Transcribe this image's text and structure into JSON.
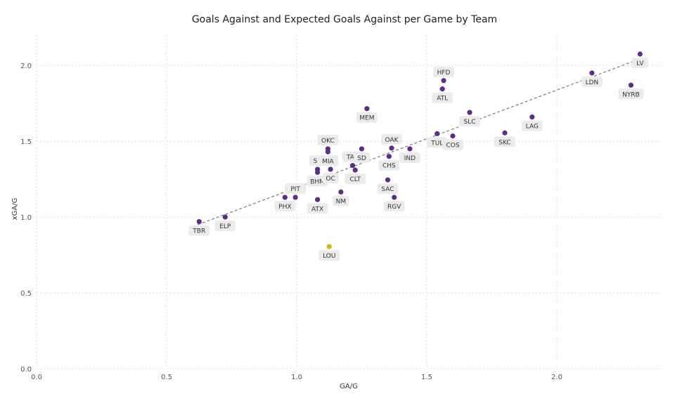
{
  "chart_data": {
    "type": "scatter",
    "title": "Goals Against and Expected Goals Against per Game by Team",
    "xlabel": "GA/G",
    "ylabel": "xGA/G",
    "xlim": [
      0.0,
      2.4
    ],
    "ylim": [
      0.0,
      2.2
    ],
    "xticks": [
      "0.0",
      "0.5",
      "1.0",
      "1.5",
      "2.0"
    ],
    "yticks": [
      "0.0",
      "0.5",
      "1.0",
      "1.5",
      "2.0"
    ],
    "grid": true,
    "trendline": {
      "style": "dashed",
      "x1": 0.62,
      "y1": 0.95,
      "x2": 2.33,
      "y2": 2.05
    },
    "colors": {
      "point": "#5b2d86",
      "highlight": "#d4b516",
      "trend": "#7a7a7a",
      "grid": "#dddddd",
      "label_bg": "#ebebeb"
    },
    "points": [
      {
        "label": "TBR",
        "x": 0.625,
        "y": 0.97,
        "pos": "below"
      },
      {
        "label": "ELP",
        "x": 0.725,
        "y": 1.0,
        "pos": "below"
      },
      {
        "label": "PHX",
        "x": 0.955,
        "y": 1.13,
        "pos": "below"
      },
      {
        "label": "PIT",
        "x": 0.995,
        "y": 1.13,
        "pos": "above"
      },
      {
        "label": "ATX",
        "x": 1.08,
        "y": 1.115,
        "pos": "below"
      },
      {
        "label": "SA",
        "x": 1.08,
        "y": 1.315,
        "pos": "above"
      },
      {
        "label": "BHM",
        "x": 1.08,
        "y": 1.295,
        "pos": "below"
      },
      {
        "label": "OKC",
        "x": 1.12,
        "y": 1.45,
        "pos": "above"
      },
      {
        "label": "MIA",
        "x": 1.12,
        "y": 1.43,
        "pos": "below"
      },
      {
        "label": "OC",
        "x": 1.13,
        "y": 1.315,
        "pos": "below"
      },
      {
        "label": "NM",
        "x": 1.17,
        "y": 1.165,
        "pos": "below"
      },
      {
        "label": "TAC",
        "x": 1.215,
        "y": 1.34,
        "pos": "above"
      },
      {
        "label": "CLT",
        "x": 1.225,
        "y": 1.31,
        "pos": "below"
      },
      {
        "label": "SD",
        "x": 1.25,
        "y": 1.45,
        "pos": "below"
      },
      {
        "label": "MEM",
        "x": 1.27,
        "y": 1.715,
        "pos": "below"
      },
      {
        "label": "SAC",
        "x": 1.35,
        "y": 1.245,
        "pos": "below"
      },
      {
        "label": "RGV",
        "x": 1.375,
        "y": 1.13,
        "pos": "below"
      },
      {
        "label": "OAK",
        "x": 1.365,
        "y": 1.455,
        "pos": "above"
      },
      {
        "label": "CHS",
        "x": 1.355,
        "y": 1.4,
        "pos": "below"
      },
      {
        "label": "IND",
        "x": 1.435,
        "y": 1.45,
        "pos": "below"
      },
      {
        "label": "TUL",
        "x": 1.54,
        "y": 1.55,
        "pos": "below"
      },
      {
        "label": "HFD",
        "x": 1.565,
        "y": 1.9,
        "pos": "above"
      },
      {
        "label": "ATL",
        "x": 1.56,
        "y": 1.845,
        "pos": "below"
      },
      {
        "label": "COS",
        "x": 1.6,
        "y": 1.535,
        "pos": "below"
      },
      {
        "label": "SLC",
        "x": 1.665,
        "y": 1.69,
        "pos": "below"
      },
      {
        "label": "SKC",
        "x": 1.8,
        "y": 1.555,
        "pos": "below"
      },
      {
        "label": "LAG",
        "x": 1.905,
        "y": 1.66,
        "pos": "below"
      },
      {
        "label": "LDN",
        "x": 2.135,
        "y": 1.95,
        "pos": "below"
      },
      {
        "label": "NYRB",
        "x": 2.285,
        "y": 1.87,
        "pos": "below"
      },
      {
        "label": "LV",
        "x": 2.32,
        "y": 2.075,
        "pos": "below"
      },
      {
        "label": "LOU",
        "x": 1.125,
        "y": 0.805,
        "pos": "below",
        "highlight": true
      }
    ]
  }
}
